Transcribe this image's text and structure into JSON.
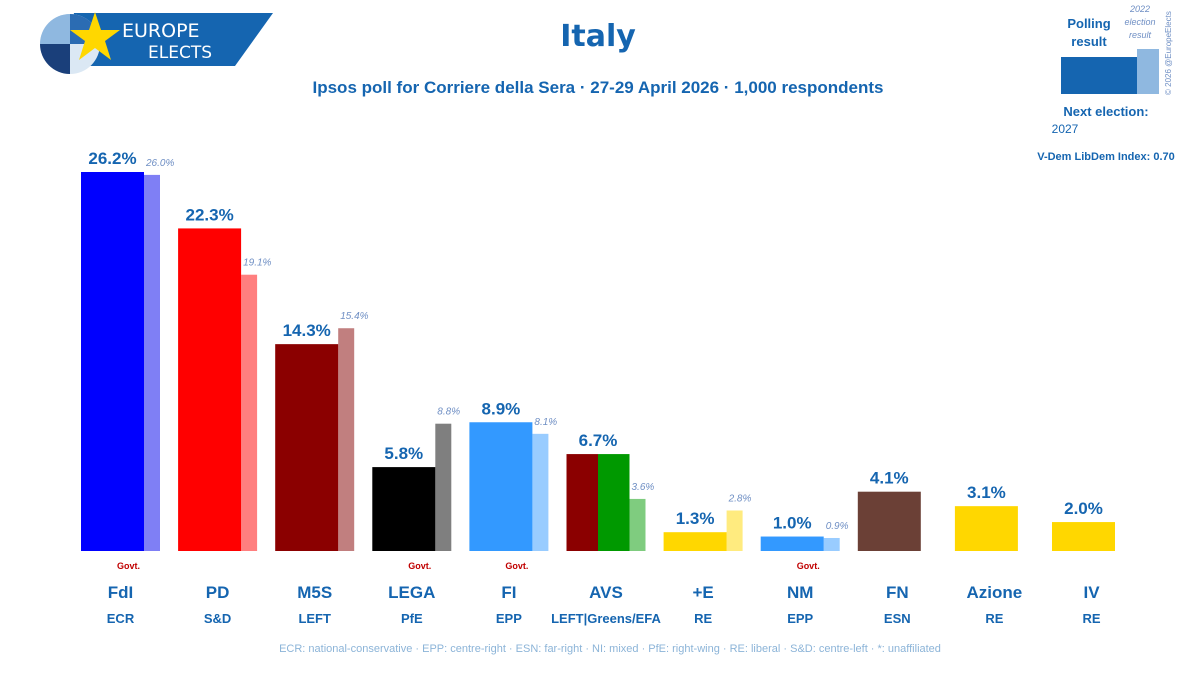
{
  "header": {
    "title": "Italy",
    "subtitle": "Ipsos poll for Corriere della Sera · 27-29 April 2026 · 1,000 respondents",
    "logo_line1": "EUROPE",
    "logo_line2": "ELECTS"
  },
  "legend": {
    "polling_label_1": "Polling",
    "polling_label_2": "result",
    "prev_label_1": "2022",
    "prev_label_2": "election",
    "prev_label_3": "result",
    "copyright": "© 2026 @EuropeElects",
    "next_election_label": "Next election:",
    "next_election_value": "2027",
    "vdem": "V-Dem LibDem Index: 0.70",
    "colors": {
      "poll": "#1565b0",
      "prev": "#8fb8e0"
    }
  },
  "footer": {
    "text": "ECR: national-conservative · EPP: centre-right · ESN: far-right · NI: mixed · PfE: right-wing · RE: liberal · S&D: centre-left · *: unaffiliated"
  },
  "chart_data": {
    "type": "bar",
    "value_unit": "%",
    "ylim": [
      0,
      26.2
    ],
    "series": [
      {
        "name": "Polling result",
        "values": [
          26.2,
          22.3,
          14.3,
          5.8,
          8.9,
          6.7,
          1.3,
          1.0,
          4.1,
          3.1,
          2.0
        ]
      },
      {
        "name": "2022 election result",
        "values": [
          26.0,
          19.1,
          15.4,
          8.8,
          8.1,
          3.6,
          2.8,
          0.9,
          null,
          null,
          null
        ]
      }
    ],
    "parties": [
      {
        "name": "FdI",
        "group": "ECR",
        "value": "26.2%",
        "prev": "26.0%",
        "govt": "Govt.",
        "colors": [
          "#0000ff"
        ],
        "prev_color": "#7f7ff5"
      },
      {
        "name": "PD",
        "group": "S&D",
        "value": "22.3%",
        "prev": "19.1%",
        "govt": "",
        "colors": [
          "#ff0000"
        ],
        "prev_color": "#ff7f7f"
      },
      {
        "name": "M5S",
        "group": "LEFT",
        "value": "14.3%",
        "prev": "15.4%",
        "govt": "",
        "colors": [
          "#8b0000"
        ],
        "prev_color": "#c17f7f"
      },
      {
        "name": "LEGA",
        "group": "PfE",
        "value": "5.8%",
        "prev": "8.8%",
        "govt": "Govt.",
        "colors": [
          "#000000"
        ],
        "prev_color": "#7f7f7f"
      },
      {
        "name": "FI",
        "group": "EPP",
        "value": "8.9%",
        "prev": "8.1%",
        "govt": "Govt.",
        "colors": [
          "#3399ff"
        ],
        "prev_color": "#99ccff"
      },
      {
        "name": "AVS",
        "group": "LEFT|Greens/EFA",
        "value": "6.7%",
        "prev": "3.6%",
        "govt": "",
        "colors": [
          "#8b0000",
          "#009900"
        ],
        "prev_color": "#7fcc7f"
      },
      {
        "name": "+E",
        "group": "RE",
        "value": "1.3%",
        "prev": "2.8%",
        "govt": "",
        "colors": [
          "#ffd700"
        ],
        "prev_color": "#ffeb7f"
      },
      {
        "name": "NM",
        "group": "EPP",
        "value": "1.0%",
        "prev": "0.9%",
        "govt": "Govt.",
        "colors": [
          "#3399ff"
        ],
        "prev_color": "#99ccff"
      },
      {
        "name": "FN",
        "group": "ESN",
        "value": "4.1%",
        "prev": "",
        "govt": "",
        "colors": [
          "#6b4036"
        ],
        "prev_color": ""
      },
      {
        "name": "Azione",
        "group": "RE",
        "value": "3.1%",
        "prev": "",
        "govt": "",
        "colors": [
          "#ffd700"
        ],
        "prev_color": ""
      },
      {
        "name": "IV",
        "group": "RE",
        "value": "2.0%",
        "prev": "",
        "govt": "",
        "colors": [
          "#ffd700"
        ],
        "prev_color": ""
      }
    ]
  }
}
